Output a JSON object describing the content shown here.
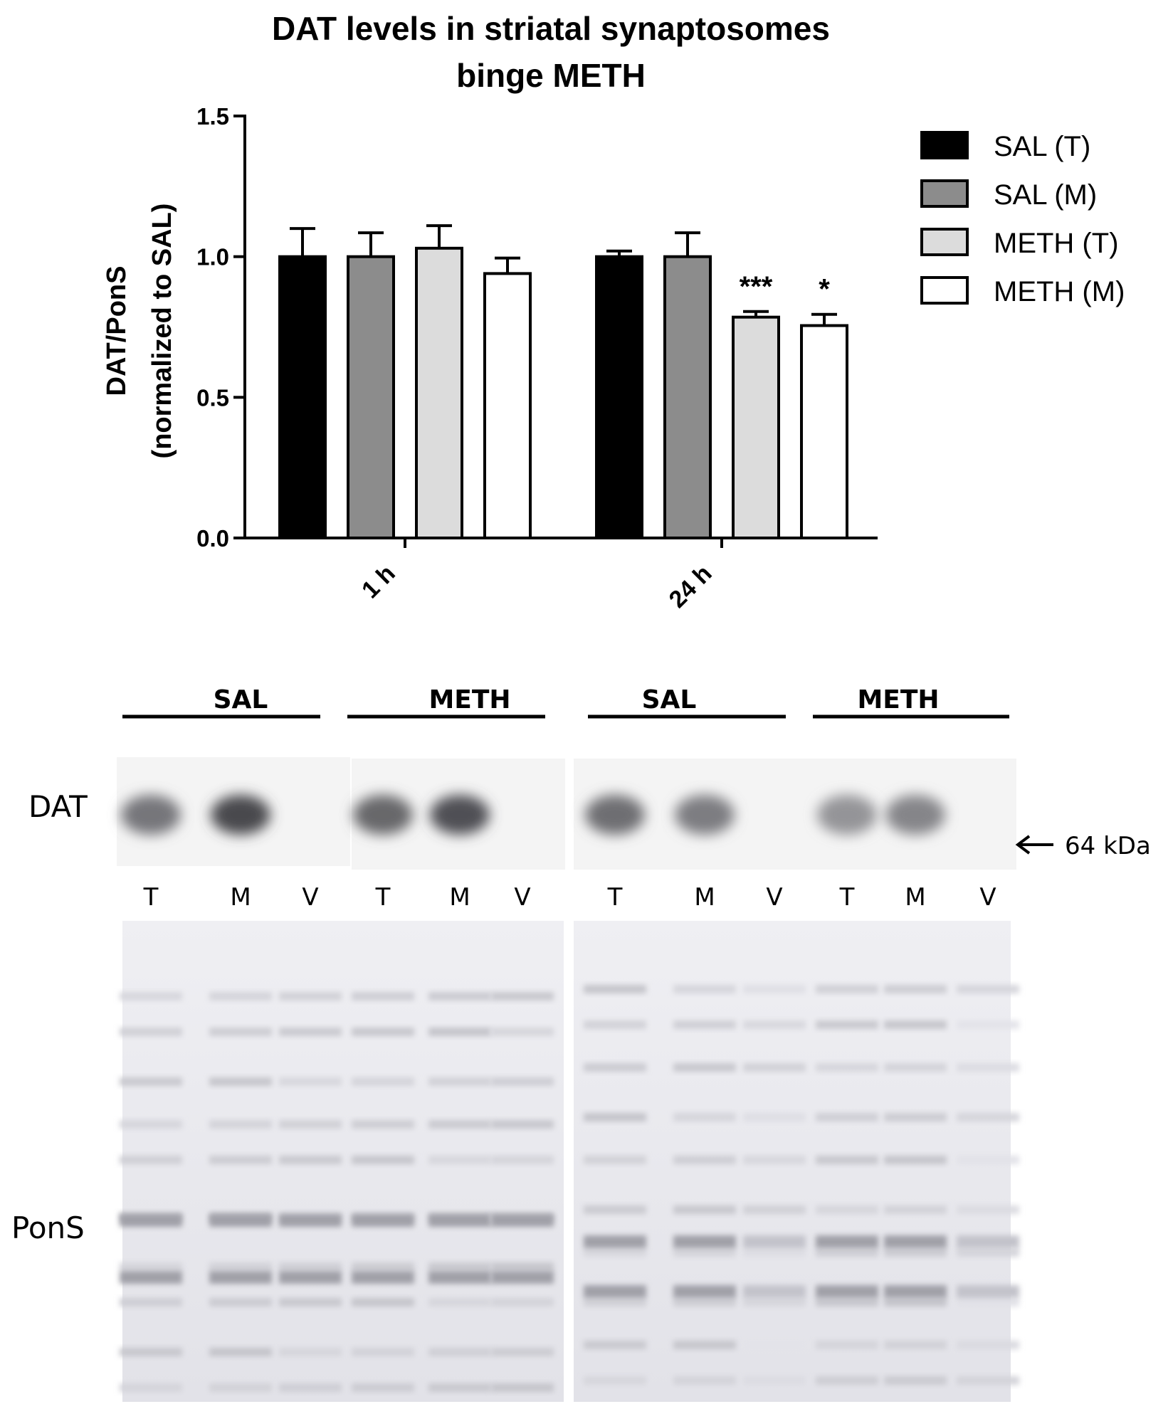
{
  "chart_data": {
    "type": "bar",
    "title": "DAT levels in striatal synaptosomes",
    "subtitle": "binge METH",
    "ylabel": "DAT/PonS",
    "ylabel2": "(normalized to SAL)",
    "xlabel": "",
    "ylim": [
      0,
      1.5
    ],
    "yticks": [
      "0.0",
      "0.5",
      "1.0",
      "1.5"
    ],
    "ytick_values": [
      0,
      0.5,
      1.0,
      1.5
    ],
    "categories": [
      "1 h",
      "24 h"
    ],
    "legend_position": "top-right",
    "grid": false,
    "series": [
      {
        "name": "SAL (T)",
        "color": "#000000",
        "values": [
          1.0,
          1.0
        ],
        "errors": [
          0.1,
          0.02
        ],
        "significance": [
          "",
          ""
        ]
      },
      {
        "name": "SAL (M)",
        "color": "#8c8c8c",
        "values": [
          1.0,
          1.0
        ],
        "errors": [
          0.085,
          0.085
        ],
        "significance": [
          "",
          ""
        ]
      },
      {
        "name": "METH (T)",
        "color": "#dcdcdc",
        "values": [
          1.03,
          0.785
        ],
        "errors": [
          0.08,
          0.02
        ],
        "significance": [
          "",
          "***"
        ]
      },
      {
        "name": "METH (M)",
        "color": "#ffffff",
        "values": [
          0.94,
          0.755
        ],
        "errors": [
          0.055,
          0.04
        ],
        "significance": [
          "",
          "*"
        ]
      }
    ]
  },
  "blot": {
    "group_labels": [
      "SAL",
      "METH",
      "SAL",
      "METH"
    ],
    "row_labels": {
      "dat": "DAT",
      "pons": "PonS"
    },
    "marker_label": "64 kDa",
    "lane_labels": [
      "T",
      "M",
      "V",
      "T",
      "M",
      "V",
      "T",
      "M",
      "V",
      "T",
      "M",
      "V"
    ],
    "dat_band_intensity": [
      0.55,
      0.85,
      0,
      0.65,
      0.8,
      0,
      0.6,
      0.5,
      0,
      0.35,
      0.45,
      0
    ]
  }
}
